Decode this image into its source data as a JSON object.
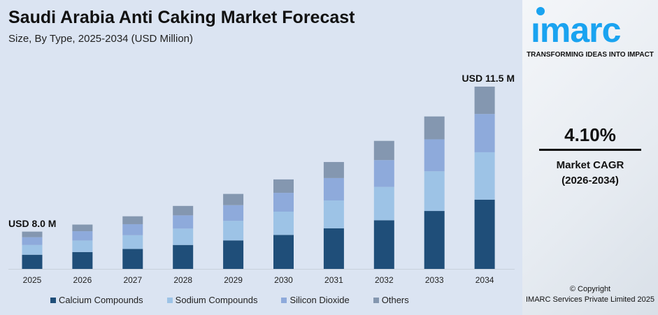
{
  "brand": {
    "logo_text": "imarc",
    "tagline": "TRANSFORMING IDEAS INTO IMPACT",
    "color": "#1aa3f0"
  },
  "cagr": {
    "value": "4.10%",
    "label": "Market CAGR",
    "period": "(2026-2034)"
  },
  "copyright": {
    "line1": "© Copyright",
    "line2": "IMARC Services Private Limited 2025"
  },
  "chart_data": {
    "type": "bar",
    "stacked": true,
    "title": "Saudi Arabia Anti Caking Market Forecast",
    "subtitle": "Size, By Type, 2025-2034 (USD Million)",
    "categories": [
      "2025",
      "2026",
      "2027",
      "2028",
      "2029",
      "2030",
      "2031",
      "2032",
      "2033",
      "2034"
    ],
    "totals": [
      8.0,
      8.17,
      8.37,
      8.62,
      8.91,
      9.26,
      9.68,
      10.19,
      10.78,
      11.5
    ],
    "series": [
      {
        "name": "Calcium Compounds",
        "color": "#1f4e79",
        "share": [
          38,
          38,
          38,
          38,
          38,
          38,
          38,
          38,
          38,
          38
        ]
      },
      {
        "name": "Sodium Compounds",
        "color": "#9dc3e6",
        "share": [
          26,
          26,
          26,
          26,
          26,
          26,
          26,
          26,
          26,
          26
        ]
      },
      {
        "name": "Silicon Dioxide",
        "color": "#8eaadb",
        "share": [
          21,
          21,
          21,
          21,
          21,
          21,
          21,
          21,
          21,
          21
        ]
      },
      {
        "name": "Others",
        "color": "#8497b0",
        "share": [
          15,
          15,
          15,
          15,
          15,
          15,
          15,
          15,
          15,
          15
        ]
      }
    ],
    "annotations": {
      "first": "USD 8.0 M",
      "last": "USD 11.5 M"
    },
    "ylim": [
      7.1,
      11.7
    ],
    "grid": false,
    "legend": "bottom"
  }
}
